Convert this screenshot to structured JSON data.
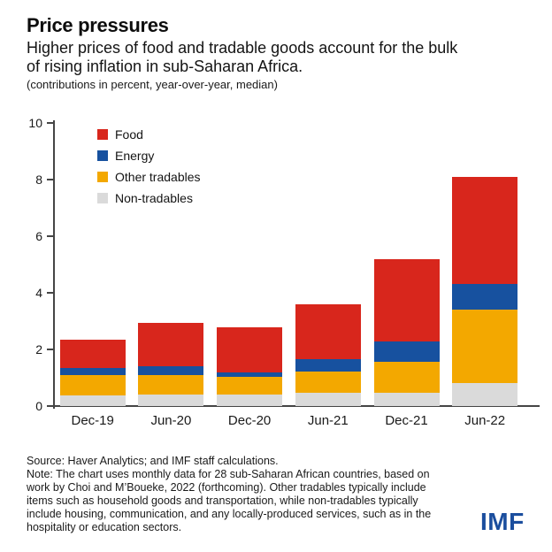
{
  "header": {
    "title": "Price pressures",
    "subtitle_lines": [
      "Higher prices of food and tradable goods account for the bulk",
      "of rising inflation in sub-Saharan Africa."
    ],
    "caption": "(contributions in percent, year-over-year, median)"
  },
  "chart_data": {
    "type": "bar",
    "stacked": true,
    "title": "Price pressures",
    "ylabel": "contributions in percent, year-over-year, median",
    "xlabel": "",
    "categories": [
      "Dec-19",
      "Jun-20",
      "Dec-20",
      "Jun-21",
      "Dec-21",
      "Jun-22"
    ],
    "series": [
      {
        "name": "Food",
        "color": "#d8261c",
        "values": [
          1.0,
          1.55,
          1.58,
          1.94,
          2.9,
          3.8
        ]
      },
      {
        "name": "Energy",
        "color": "#17519f",
        "values": [
          0.27,
          0.31,
          0.17,
          0.43,
          0.73,
          0.9
        ]
      },
      {
        "name": "Other tradables",
        "color": "#f3a800",
        "values": [
          0.7,
          0.69,
          0.63,
          0.76,
          1.09,
          2.6
        ]
      },
      {
        "name": "Non-tradables",
        "color": "#dadada",
        "values": [
          0.38,
          0.4,
          0.4,
          0.47,
          0.46,
          0.8
        ]
      }
    ],
    "totals": [
      2.35,
      2.95,
      2.78,
      3.6,
      5.18,
      8.1
    ],
    "stack_order_bottom_to_top": [
      "Non-tradables",
      "Other tradables",
      "Energy",
      "Food"
    ],
    "y_ticks": [
      0,
      2,
      4,
      6,
      8,
      10
    ],
    "ylim": [
      0,
      10
    ],
    "grid": false,
    "legend_position": "inside-top-left"
  },
  "footer": {
    "source": "Source: Haver Analytics; and IMF staff calculations.",
    "note_lines": [
      "Note: The chart uses monthly data for 28 sub-Saharan African countries, based on",
      "work by Choi and M’Boueke, 2022 (forthcoming). Other tradables typically include",
      "items such as household goods and transportation, while non-tradables typically",
      "include housing, communication, and any locally-produced services, such as in the",
      "hospitality or education sectors."
    ],
    "logo": "IMF"
  },
  "colors": {
    "food": "#d8261c",
    "energy": "#17519f",
    "other_tradables": "#f3a800",
    "non_tradables": "#dadada",
    "axis": "#454545",
    "logo_blue": "#1b4e9e"
  }
}
